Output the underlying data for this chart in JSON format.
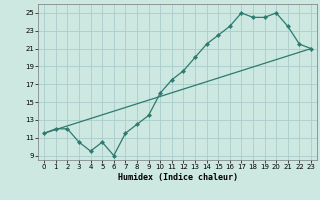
{
  "title": "",
  "xlabel": "Humidex (Indice chaleur)",
  "bg_color": "#cce8e0",
  "grid_color": "#aacccc",
  "line_color": "#2d7a6e",
  "xlim": [
    -0.5,
    23.5
  ],
  "ylim": [
    8.5,
    26.0
  ],
  "xticks": [
    0,
    1,
    2,
    3,
    4,
    5,
    6,
    7,
    8,
    9,
    10,
    11,
    12,
    13,
    14,
    15,
    16,
    17,
    18,
    19,
    20,
    21,
    22,
    23
  ],
  "yticks": [
    9,
    11,
    13,
    15,
    17,
    19,
    21,
    23,
    25
  ],
  "line1_x": [
    0,
    1,
    2,
    3,
    4,
    5,
    6,
    7,
    8,
    9,
    10,
    11,
    12,
    13,
    14,
    15,
    16,
    17,
    18,
    19,
    20,
    21,
    22,
    23
  ],
  "line1_y": [
    11.5,
    12.0,
    12.0,
    10.5,
    9.5,
    10.5,
    9.0,
    11.5,
    12.5,
    13.5,
    16.0,
    17.5,
    18.5,
    20.0,
    21.5,
    22.5,
    23.5,
    25.0,
    24.5,
    24.5,
    25.0,
    23.5,
    21.5,
    21.0
  ],
  "line2_x": [
    0,
    23
  ],
  "line2_y": [
    11.5,
    21.0
  ],
  "xlabel_fontsize": 6,
  "tick_fontsize": 5
}
